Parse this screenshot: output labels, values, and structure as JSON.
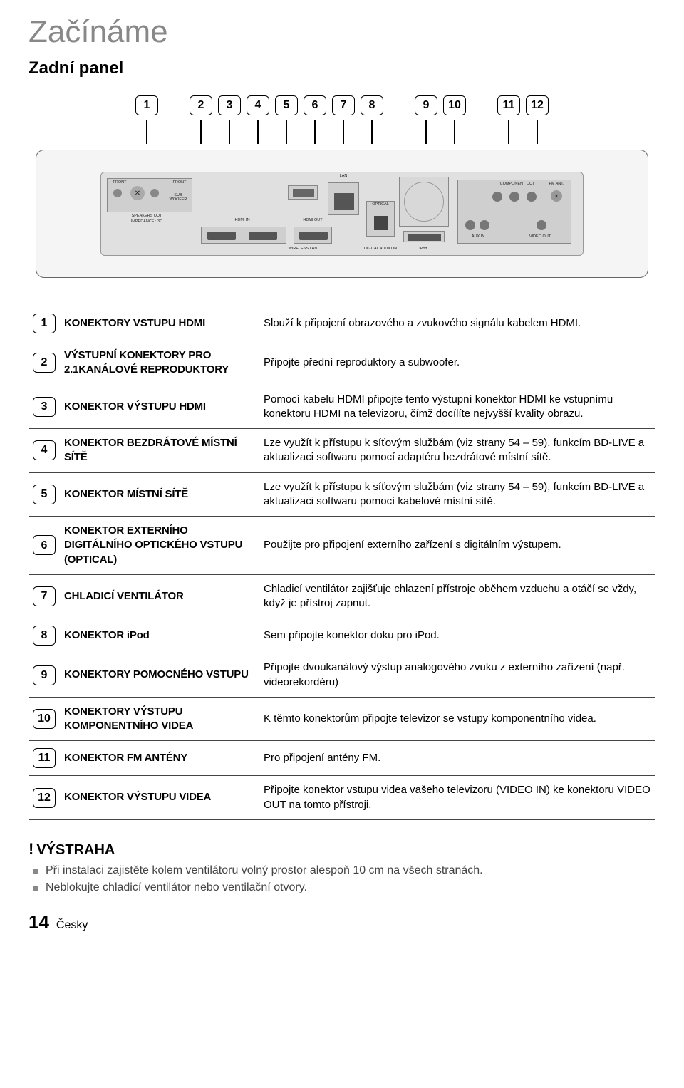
{
  "header": {
    "title": "Začínáme",
    "subtitle": "Zadní panel"
  },
  "callouts": [
    1,
    2,
    3,
    4,
    5,
    6,
    7,
    8,
    9,
    10,
    11,
    12
  ],
  "callout_spacers_after": [
    1,
    8,
    10
  ],
  "rear_panel_labels": {
    "front_l": "FRONT",
    "front_r": "FRONT",
    "sub": "SUB WOOFER",
    "speakers_out": "SPEAKERS OUT",
    "impedance": "IMPEDANCE : 3Ω",
    "hdmi_in": "HDMI IN",
    "hdmi_out": "HDMI OUT",
    "lan": "LAN",
    "wireless_lan": "WIRELESS LAN",
    "digital_audio_in": "DIGITAL AUDIO IN",
    "optical": "OPTICAL",
    "ipod": "iPod",
    "aux_in": "AUX IN",
    "component_out": "COMPONENT OUT",
    "fm_ant": "FM ANT.",
    "video_out": "VIDEO OUT"
  },
  "rows": [
    {
      "n": 1,
      "name": "KONEKTORY VSTUPU HDMI",
      "desc": "Slouží k připojení obrazového a zvukového signálu kabelem HDMI."
    },
    {
      "n": 2,
      "name": "VÝSTUPNÍ KONEKTORY PRO 2.1KANÁLOVÉ REPRODUKTORY",
      "desc": "Připojte přední reproduktory a subwoofer."
    },
    {
      "n": 3,
      "name": "KONEKTOR VÝSTUPU HDMI",
      "desc": "Pomocí kabelu HDMI připojte tento výstupní konektor HDMI ke vstupnímu konektoru HDMI na televizoru, čímž docílíte nejvyšší kvality obrazu."
    },
    {
      "n": 4,
      "name": "KONEKTOR BEZDRÁTOVÉ MÍSTNÍ SÍTĚ",
      "desc": "Lze využít k přístupu k síťovým službám (viz strany 54 – 59), funkcím BD-LIVE a aktualizaci softwaru pomocí adaptéru bezdrátové místní sítě."
    },
    {
      "n": 5,
      "name": "KONEKTOR MÍSTNÍ SÍTĚ",
      "desc": "Lze využít k přístupu k síťovým službám (viz strany 54 – 59), funkcím BD-LIVE a aktualizaci softwaru pomocí kabelové místní sítě."
    },
    {
      "n": 6,
      "name": "KONEKTOR EXTERNÍHO DIGITÁLNÍHO OPTICKÉHO VSTUPU (OPTICAL)",
      "desc": "Použijte pro připojení externího zařízení s digitálním výstupem."
    },
    {
      "n": 7,
      "name": "CHLADICÍ VENTILÁTOR",
      "desc": "Chladicí ventilátor zajišťuje chlazení přístroje oběhem vzduchu a otáčí se vždy, když je přístroj zapnut."
    },
    {
      "n": 8,
      "name": "KONEKTOR iPod",
      "desc": "Sem připojte konektor doku pro iPod."
    },
    {
      "n": 9,
      "name": "KONEKTORY POMOCNÉHO VSTUPU",
      "desc": "Připojte dvoukanálový výstup analogového zvuku z externího zařízení (např. videorekordéru)"
    },
    {
      "n": 10,
      "name": "KONEKTORY VÝSTUPU KOMPONENTNÍHO VIDEA",
      "desc": "K těmto konektorům připojte televizor se vstupy komponentního videa."
    },
    {
      "n": 11,
      "name": "KONEKTOR FM ANTÉNY",
      "desc": "Pro připojení antény FM."
    },
    {
      "n": 12,
      "name": "KONEKTOR VÝSTUPU VIDEA",
      "desc": "Připojte konektor vstupu videa vašeho televizoru (VIDEO IN) ke konektoru VIDEO OUT na tomto přístroji."
    }
  ],
  "warning": {
    "heading": "VÝSTRAHA",
    "bullets": [
      "Při instalaci zajistěte kolem ventilátoru volný prostor alespoň 10 cm na všech stranách.",
      "Neblokujte chladicí ventilátor nebo ventilační otvory."
    ]
  },
  "footer": {
    "page": "14",
    "lang": "Česky"
  },
  "colors": {
    "title_gray": "#888888",
    "text": "#000000",
    "rule": "#444444",
    "panel_bg": "#f5f5f5",
    "plate_bg": "#e0e0e0"
  }
}
